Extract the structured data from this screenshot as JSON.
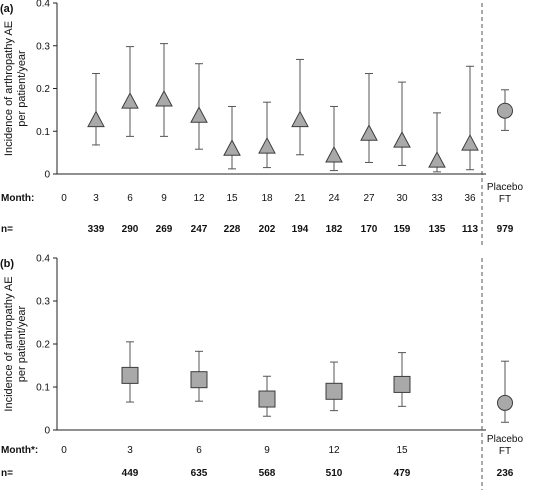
{
  "chart_data": [
    {
      "panel_label": "(a)",
      "type": "scatter",
      "ylabel": [
        "Incidence of arthropathy AE",
        "per patient/year"
      ],
      "ylim": [
        0,
        0.4
      ],
      "yticks": [
        "0",
        "0.1",
        "0.2",
        "0.3",
        "0.4"
      ],
      "x_row_label": "Month:",
      "n_row_label": "n=",
      "zero_label": "0",
      "grid": false,
      "categories": [
        "3",
        "6",
        "9",
        "12",
        "15",
        "18",
        "21",
        "24",
        "27",
        "30",
        "33",
        "36"
      ],
      "n_values": [
        "339",
        "290",
        "269",
        "247",
        "228",
        "202",
        "194",
        "182",
        "170",
        "159",
        "135",
        "113"
      ],
      "marker": "triangle",
      "values": [
        0.125,
        0.168,
        0.173,
        0.135,
        0.058,
        0.063,
        0.125,
        0.042,
        0.093,
        0.077,
        0.03,
        0.07
      ],
      "lower": [
        0.068,
        0.088,
        0.088,
        0.058,
        0.012,
        0.015,
        0.045,
        0.008,
        0.027,
        0.02,
        0.005,
        0.01
      ],
      "upper": [
        0.235,
        0.298,
        0.305,
        0.258,
        0.158,
        0.168,
        0.268,
        0.158,
        0.235,
        0.215,
        0.143,
        0.252
      ],
      "reference": {
        "label_line1": "Placebo",
        "label_line2": "FT",
        "n": "979",
        "marker": "circle",
        "value": 0.148,
        "lower": 0.102,
        "upper": 0.197
      }
    },
    {
      "panel_label": "(b)",
      "type": "scatter",
      "ylabel": [
        "Incidence of arthropathy AE",
        "per patient/year"
      ],
      "ylim": [
        0,
        0.4
      ],
      "yticks": [
        "0",
        "0.1",
        "0.2",
        "0.3",
        "0.4"
      ],
      "x_row_label": "Month*:",
      "n_row_label": "n=",
      "zero_label": "0",
      "grid": false,
      "categories": [
        "3",
        "6",
        "9",
        "12",
        "15"
      ],
      "n_values": [
        "449",
        "635",
        "568",
        "510",
        "479"
      ],
      "marker": "square",
      "values": [
        0.127,
        0.117,
        0.072,
        0.09,
        0.106
      ],
      "lower": [
        0.065,
        0.067,
        0.032,
        0.045,
        0.055
      ],
      "upper": [
        0.205,
        0.183,
        0.125,
        0.158,
        0.18
      ],
      "reference": {
        "label_line1": "Placebo",
        "label_line2": "FT",
        "n": "236",
        "marker": "circle",
        "value": 0.063,
        "lower": 0.018,
        "upper": 0.16
      }
    }
  ],
  "colors": {
    "marker_fill": "#a9a9a9",
    "marker_stroke": "#3c3c3c",
    "axis": "#222222",
    "error_bar": "#555555",
    "text": "#111111",
    "divider": "#555555"
  }
}
